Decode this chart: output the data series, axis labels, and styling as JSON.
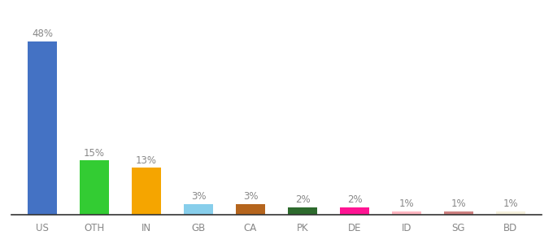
{
  "categories": [
    "US",
    "OTH",
    "IN",
    "GB",
    "CA",
    "PK",
    "DE",
    "ID",
    "SG",
    "BD"
  ],
  "values": [
    48,
    15,
    13,
    3,
    3,
    2,
    2,
    1,
    1,
    1
  ],
  "labels": [
    "48%",
    "15%",
    "13%",
    "3%",
    "3%",
    "2%",
    "2%",
    "1%",
    "1%",
    "1%"
  ],
  "bar_colors": [
    "#4472c4",
    "#33cc33",
    "#f5a500",
    "#87ceeb",
    "#b5651d",
    "#2d6a2d",
    "#ff1493",
    "#ffb6c1",
    "#cd8080",
    "#f5f0dc"
  ],
  "ylim": [
    0,
    54
  ],
  "background_color": "#ffffff",
  "label_fontsize": 8.5,
  "xlabel_fontsize": 8.5,
  "bar_width": 0.55
}
